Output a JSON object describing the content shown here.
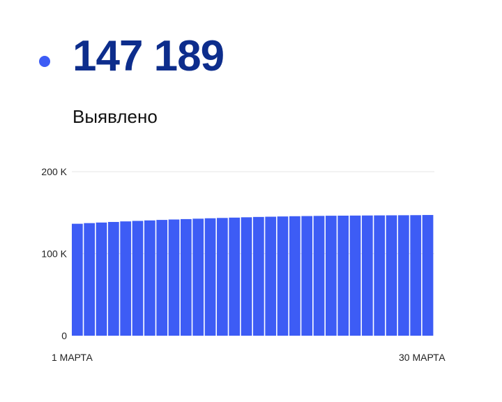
{
  "stat": {
    "value": "147 189",
    "label": "Выявлено"
  },
  "colors": {
    "accent": "#3d5cf5",
    "value_text": "#0d2d8c",
    "grid": "#e6e6e6"
  },
  "chart_data": {
    "type": "bar",
    "x_start_label": "1 МАРТА",
    "x_end_label": "30 МАРТА",
    "y_ticks": [
      {
        "value": 200000,
        "label": "200 K"
      },
      {
        "value": 100000,
        "label": "100 K"
      },
      {
        "value": 0,
        "label": "0"
      }
    ],
    "ylim": [
      0,
      200000
    ],
    "grid": true,
    "values": [
      136500,
      137300,
      138000,
      138700,
      139400,
      140000,
      140600,
      141200,
      141700,
      142200,
      142700,
      143200,
      143600,
      144000,
      144400,
      144800,
      145100,
      145400,
      145700,
      145900,
      146100,
      146300,
      146400,
      146500,
      146600,
      146700,
      146800,
      146900,
      147000,
      147189
    ]
  }
}
